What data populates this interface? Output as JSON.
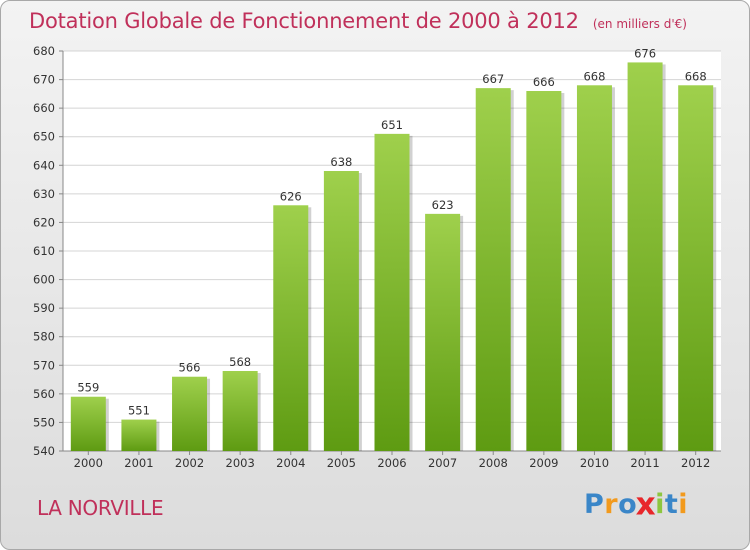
{
  "chart_data": {
    "type": "bar",
    "title": "Dotation Globale de Fonctionnement de 2000 à 2012",
    "subtitle": "(en milliers d'€)",
    "categories": [
      "2000",
      "2001",
      "2002",
      "2003",
      "2004",
      "2005",
      "2006",
      "2007",
      "2008",
      "2009",
      "2010",
      "2011",
      "2012"
    ],
    "values": [
      559,
      551,
      566,
      568,
      626,
      638,
      651,
      623,
      667,
      666,
      668,
      676,
      668
    ],
    "ylim": [
      540,
      680
    ],
    "yticks": [
      540,
      550,
      560,
      570,
      580,
      590,
      600,
      610,
      620,
      630,
      640,
      650,
      660,
      670,
      680
    ],
    "grid": true,
    "bar_color_top": "#9fd04c",
    "bar_color_bottom": "#5e9b12"
  },
  "location": "LA NORVILLE",
  "logo": {
    "letters": [
      "P",
      "r",
      "o",
      "x",
      "i",
      "t",
      "i"
    ],
    "colors": [
      "#3a86c8",
      "#f29a1d",
      "#3a86c8",
      "#e8262a",
      "#8dc63f",
      "#3a86c8",
      "#f29a1d"
    ]
  }
}
